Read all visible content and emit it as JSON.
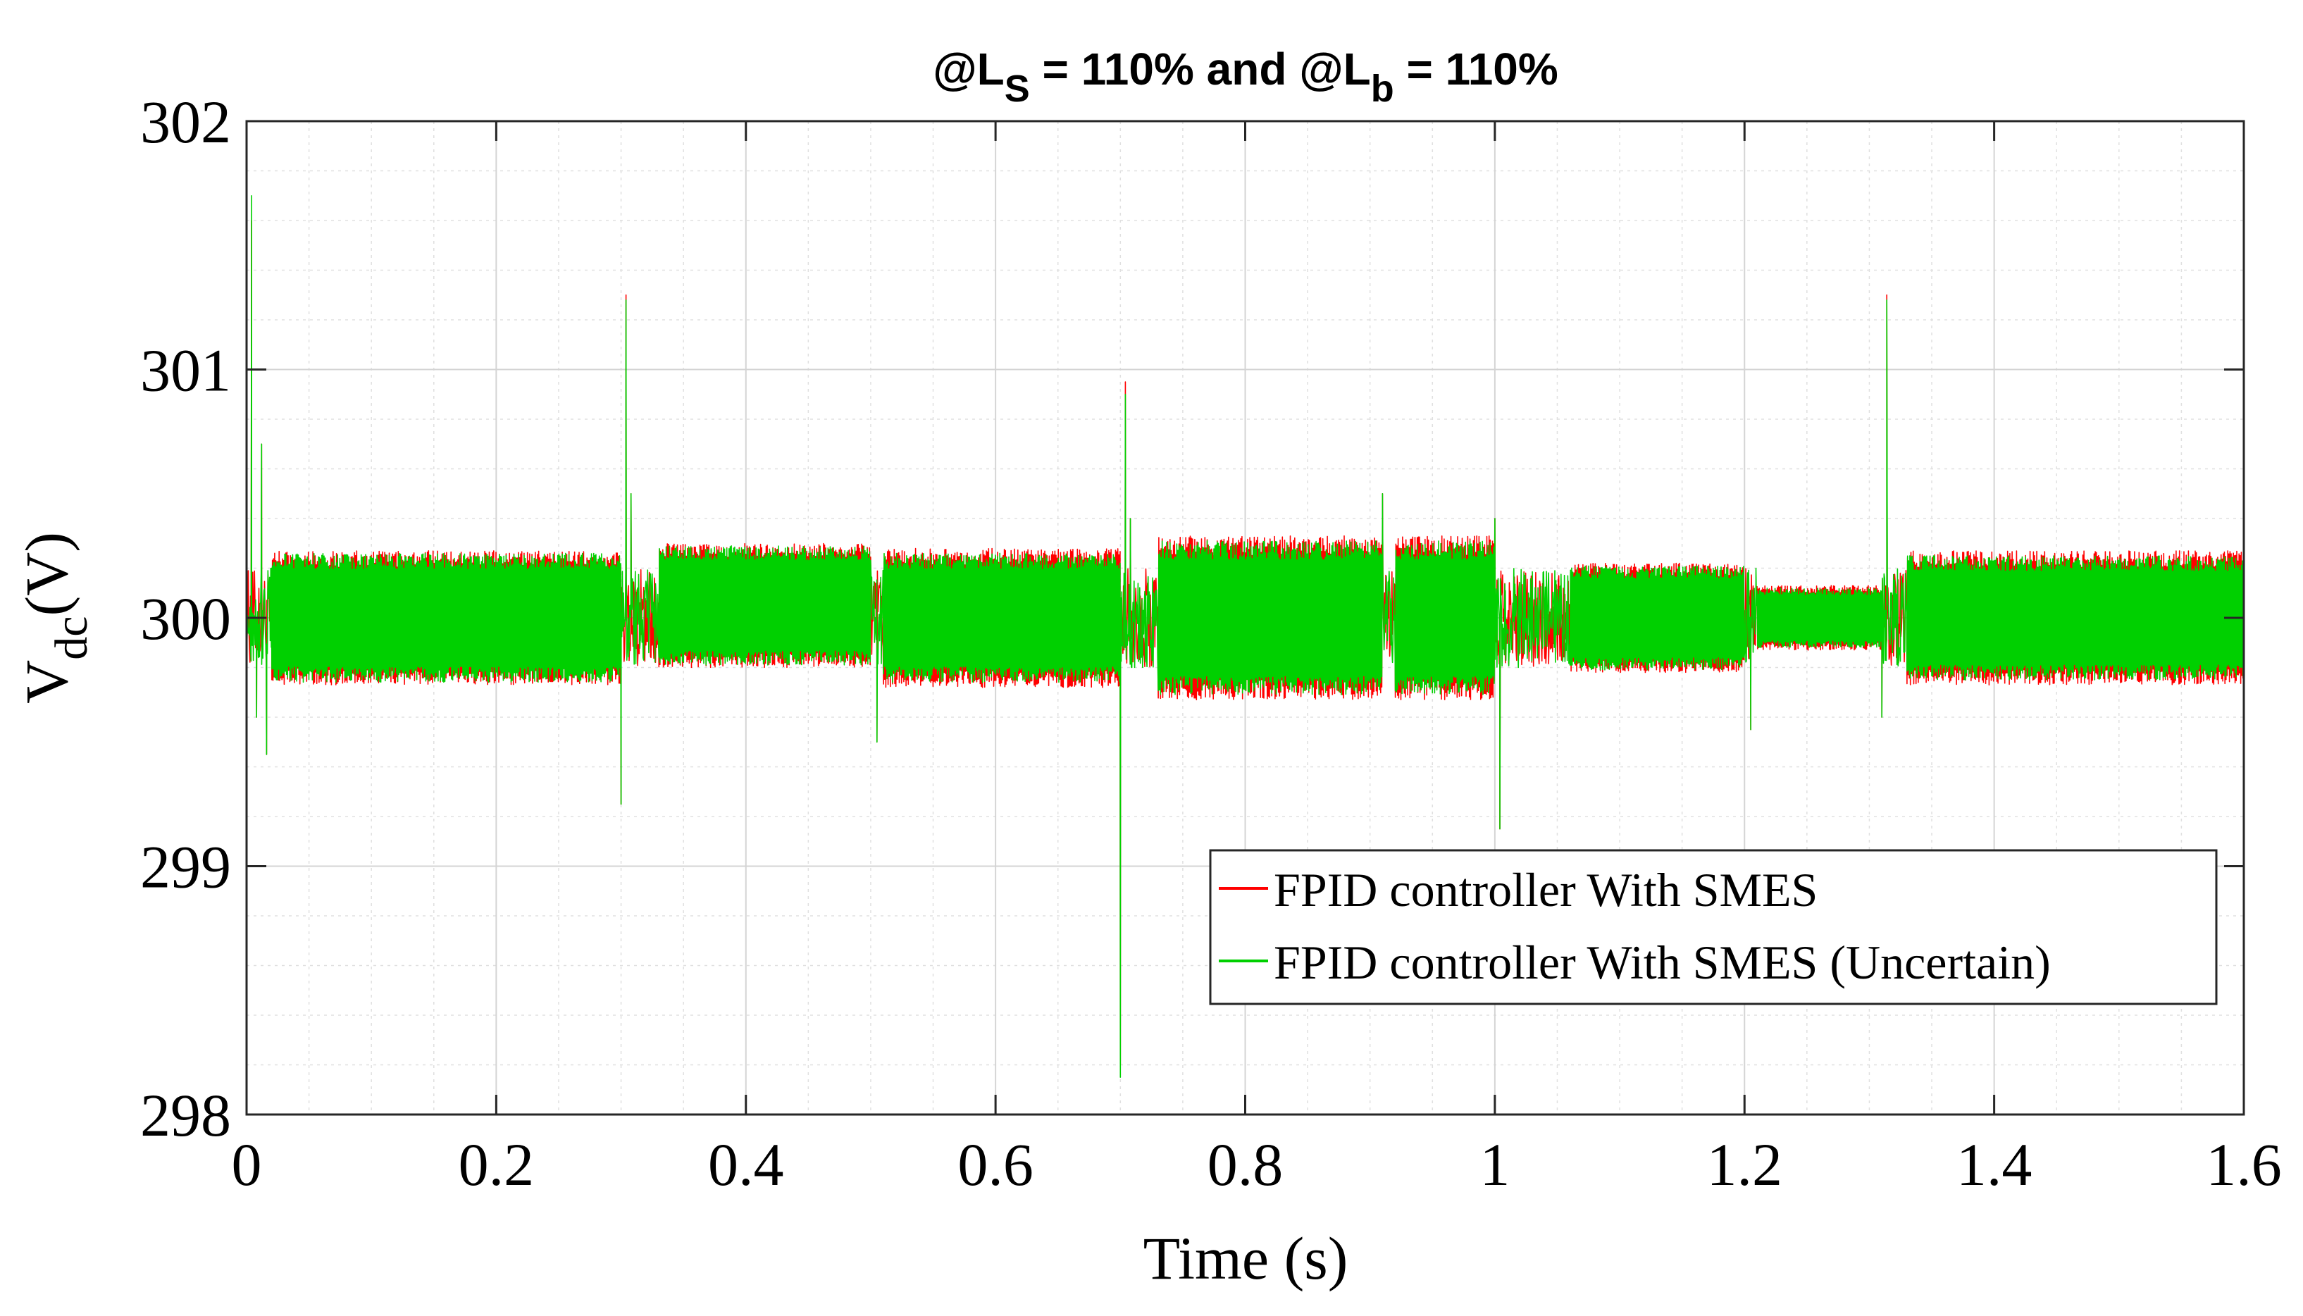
{
  "chart_data": {
    "type": "line",
    "title": {
      "prefix_s": "@L",
      "sub_s": "S",
      "middle": " = 110% and @L",
      "sub_b": "b",
      "suffix": " = 110%"
    },
    "xlabel": "Time (s)",
    "ylabel": {
      "main": "V",
      "sub": "dc",
      "unit": "(V)"
    },
    "xlim": [
      0,
      1.6
    ],
    "ylim": [
      298,
      302
    ],
    "xticks": [
      0,
      0.2,
      0.4,
      0.6,
      0.8,
      1,
      1.2,
      1.4,
      1.6
    ],
    "xtick_labels": [
      "0",
      "0.2",
      "0.4",
      "0.6",
      "0.8",
      "1",
      "1.2",
      "1.4",
      "1.6"
    ],
    "yticks": [
      298,
      299,
      300,
      301,
      302
    ],
    "ytick_labels": [
      "298",
      "299",
      "300",
      "301",
      "302"
    ],
    "grid": true,
    "minor_grid": true,
    "legend_position": "lower-right",
    "series": [
      {
        "name": "FPID controller With SMES",
        "color": "#ff0000",
        "segments": [
          {
            "t0": 0.02,
            "t1": 0.3,
            "center": 300.0,
            "amp": 0.27
          },
          {
            "t0": 0.33,
            "t1": 0.5,
            "center": 300.05,
            "amp": 0.25
          },
          {
            "t0": 0.51,
            "t1": 0.7,
            "center": 300.0,
            "amp": 0.28
          },
          {
            "t0": 0.73,
            "t1": 0.91,
            "center": 300.0,
            "amp": 0.33
          },
          {
            "t0": 0.92,
            "t1": 1.0,
            "center": 300.0,
            "amp": 0.33
          },
          {
            "t0": 1.06,
            "t1": 1.2,
            "center": 300.0,
            "amp": 0.22
          },
          {
            "t0": 1.21,
            "t1": 1.31,
            "center": 300.0,
            "amp": 0.13
          },
          {
            "t0": 1.33,
            "t1": 1.6,
            "center": 300.0,
            "amp": 0.27
          }
        ],
        "events": [
          {
            "t": 0.0,
            "values": [
              299.8,
              301.6,
              299.6,
              300.7,
              299.45,
              300.2
            ]
          },
          {
            "t": 0.3,
            "values": [
              299.25,
              301.3,
              300.5
            ]
          },
          {
            "t": 0.505,
            "values": [
              299.5,
              300.0
            ]
          },
          {
            "t": 0.7,
            "values": [
              298.2,
              300.95,
              300.4
            ]
          },
          {
            "t": 0.91,
            "values": [
              300.5,
              300.0
            ]
          },
          {
            "t": 1.0,
            "values": [
              300.4,
              299.15,
              300.0
            ]
          },
          {
            "t": 1.205,
            "values": [
              299.55,
              300.0
            ]
          },
          {
            "t": 1.31,
            "values": [
              299.6,
              301.3,
              300.1
            ]
          }
        ]
      },
      {
        "name": "FPID controller With SMES (Uncertain)",
        "color": "#00d000",
        "segments": [
          {
            "t0": 0.02,
            "t1": 0.3,
            "center": 300.0,
            "amp": 0.26
          },
          {
            "t0": 0.33,
            "t1": 0.5,
            "center": 300.05,
            "amp": 0.24
          },
          {
            "t0": 0.51,
            "t1": 0.7,
            "center": 300.0,
            "amp": 0.26
          },
          {
            "t0": 0.73,
            "t1": 0.91,
            "center": 300.0,
            "amp": 0.31
          },
          {
            "t0": 0.92,
            "t1": 1.0,
            "center": 300.0,
            "amp": 0.31
          },
          {
            "t0": 1.06,
            "t1": 1.2,
            "center": 300.0,
            "amp": 0.21
          },
          {
            "t0": 1.21,
            "t1": 1.31,
            "center": 300.0,
            "amp": 0.12
          },
          {
            "t0": 1.33,
            "t1": 1.6,
            "center": 300.0,
            "amp": 0.25
          }
        ],
        "events": [
          {
            "t": 0.0,
            "values": [
              299.8,
              301.7,
              299.6,
              300.7,
              299.45,
              300.2
            ]
          },
          {
            "t": 0.3,
            "values": [
              299.25,
              301.28,
              300.5
            ]
          },
          {
            "t": 0.505,
            "values": [
              299.5,
              300.0
            ]
          },
          {
            "t": 0.7,
            "values": [
              298.15,
              300.9,
              300.4
            ]
          },
          {
            "t": 0.91,
            "values": [
              300.5,
              300.0
            ]
          },
          {
            "t": 1.0,
            "values": [
              300.4,
              299.15,
              300.0
            ]
          },
          {
            "t": 1.205,
            "values": [
              299.55,
              300.0
            ]
          },
          {
            "t": 1.31,
            "values": [
              299.6,
              301.28,
              300.1
            ]
          }
        ]
      }
    ]
  }
}
